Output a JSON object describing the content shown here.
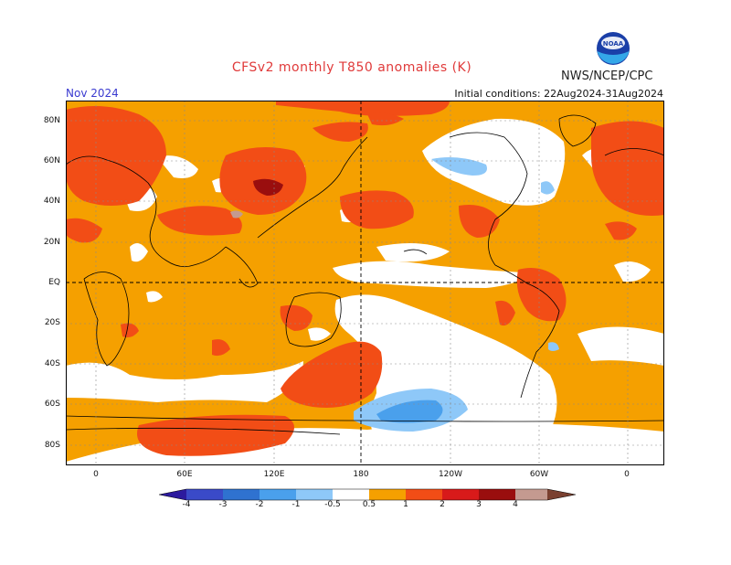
{
  "header": {
    "title": "CFSv2 monthly T850 anomalies (K)",
    "agency": "NWS/NCEP/CPC",
    "logo_text": "NOAA",
    "month": "Nov 2024",
    "initial_conditions": "Initial conditions: 22Aug2024-31Aug2024"
  },
  "map": {
    "projection": "equirectangular, centered near 180",
    "lat_labels": [
      "80N",
      "60N",
      "40N",
      "20N",
      "EQ",
      "20S",
      "40S",
      "60S",
      "80S"
    ],
    "lon_labels": [
      "0",
      "60E",
      "120E",
      "180",
      "120W",
      "60W",
      "0"
    ],
    "background_color": "#ffffff",
    "grid": "dotted gray, 20 degree spacing; dashed black at equator and 180"
  },
  "colorbar": {
    "labels": [
      "-4",
      "-3",
      "-2",
      "-1",
      "-0.5",
      "0.5",
      "1",
      "2",
      "3",
      "4"
    ],
    "colors": [
      "#2c1a9e",
      "#3a4ac8",
      "#2f72d0",
      "#4aa0ec",
      "#8ec8f8",
      "#ffffff",
      "#f5a000",
      "#f24d16",
      "#d81a1a",
      "#9a0e0e",
      "#c49a90",
      "#7a4030"
    ]
  }
}
